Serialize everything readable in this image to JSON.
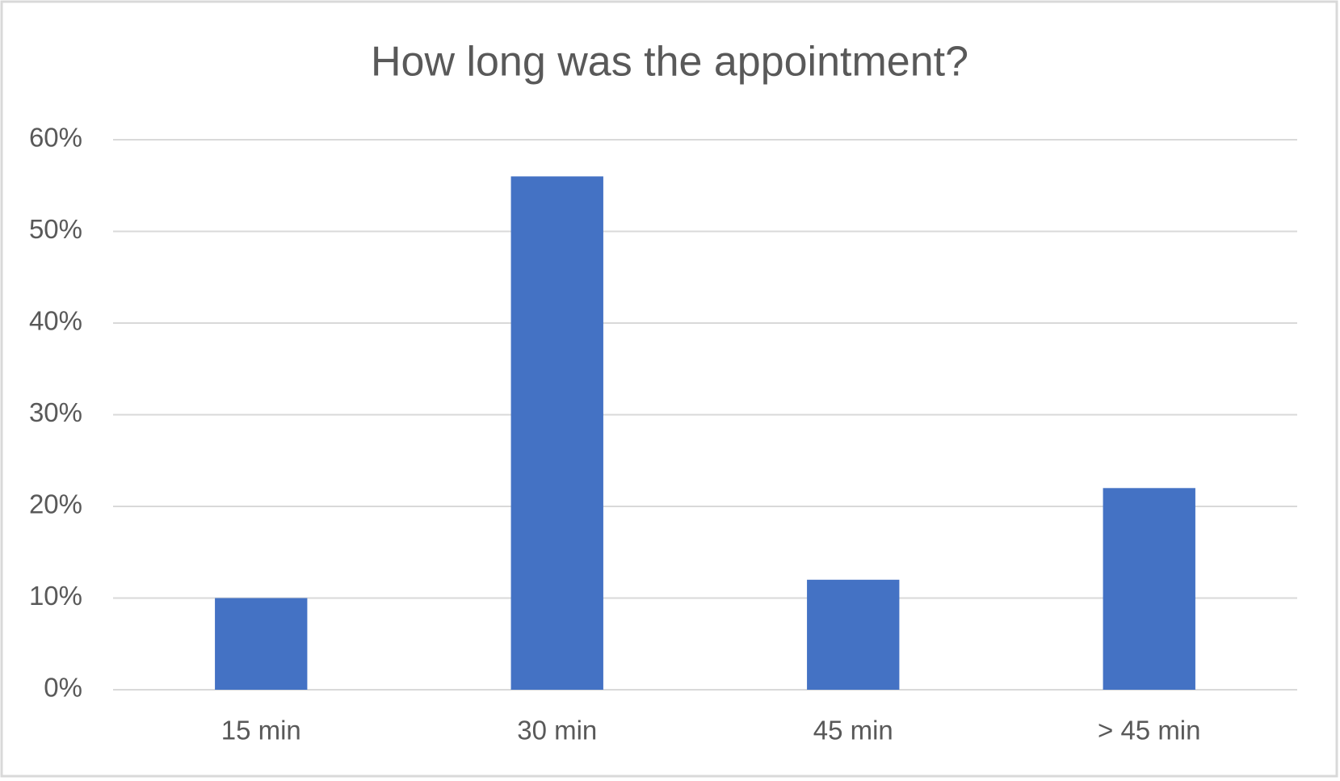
{
  "chart_data": {
    "type": "bar",
    "title": "How long was the appointment?",
    "categories": [
      "15 min",
      "30 min",
      "45 min",
      "> 45 min"
    ],
    "values": [
      10,
      56,
      12,
      22
    ],
    "color": "#4472c4",
    "ylim": [
      0,
      60
    ],
    "yticks": [
      {
        "value": 0,
        "label": "0%"
      },
      {
        "value": 10,
        "label": "10%"
      },
      {
        "value": 20,
        "label": "20%"
      },
      {
        "value": 30,
        "label": "30%"
      },
      {
        "value": 40,
        "label": "40%"
      },
      {
        "value": 50,
        "label": "50%"
      },
      {
        "value": 60,
        "label": "60%"
      }
    ],
    "grid": true
  }
}
